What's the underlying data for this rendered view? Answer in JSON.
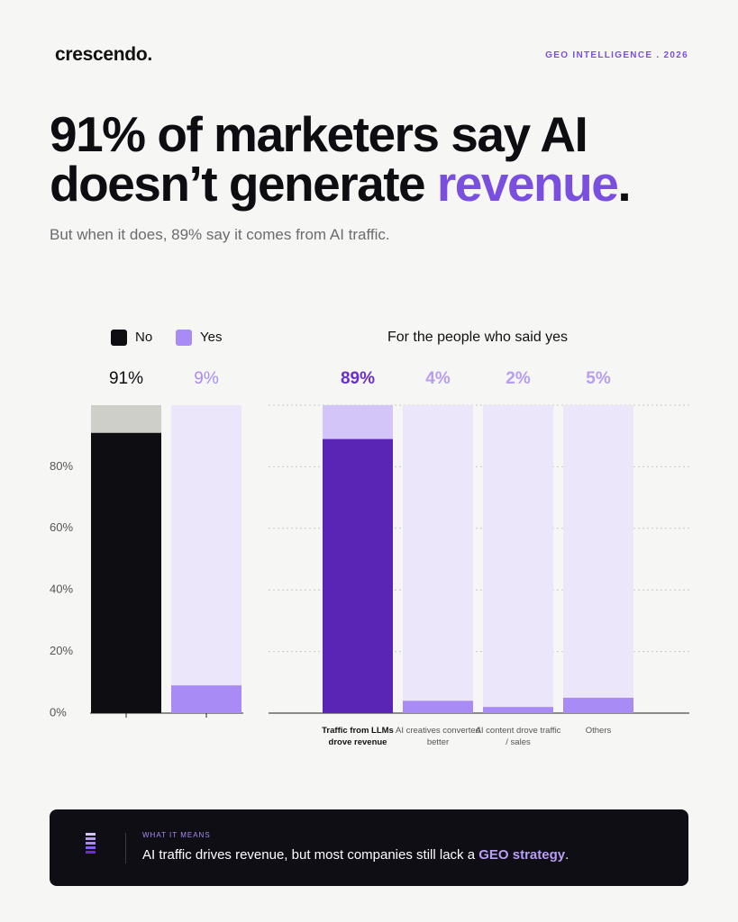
{
  "header": {
    "brand": "crescendo.",
    "tag": "GEO INTELLIGENCE . 2026"
  },
  "headline": {
    "text": "91% of marketers say AI doesn’t generate ",
    "highlight": "revenue",
    "end": "."
  },
  "subtitle": "But when it does, 89% say it comes from AI traffic.",
  "chart_data": [
    {
      "type": "bar",
      "track": true,
      "series": [
        {
          "name": "No",
          "color": "#0e0d12",
          "track_color": "#cfcfc9",
          "values": [
            91
          ],
          "value_labels": [
            "91%"
          ]
        },
        {
          "name": "Yes",
          "color": "#a98bf5",
          "track_color": "#ece6fb",
          "values": [
            9
          ],
          "value_labels": [
            "9%"
          ]
        }
      ],
      "ylim": [
        0,
        100
      ],
      "yticks": [
        {
          "value": 0,
          "label": "0%"
        },
        {
          "value": 20,
          "label": "20%"
        },
        {
          "value": 40,
          "label": "40%"
        },
        {
          "value": 60,
          "label": "60%"
        },
        {
          "value": 80,
          "label": "80%"
        }
      ]
    },
    {
      "type": "bar",
      "title": "For the people who said yes",
      "grid": true,
      "categories": [
        "Traffic from LLMs drove revenue",
        "AI creatives converted better",
        "AI content drove traffic / sales",
        "Others"
      ],
      "values": [
        89,
        4,
        2,
        5
      ],
      "value_labels": [
        "89%",
        "4%",
        "2%",
        "5%"
      ],
      "colors": [
        "#5a24b4",
        "#a98bf5",
        "#a98bf5",
        "#a98bf5"
      ],
      "track_colors": [
        "#d4c5f9",
        "#ece6fb",
        "#ece6fb",
        "#ece6fb"
      ],
      "label_colors": [
        "#6a2ed0",
        "#b79df5",
        "#b79df5",
        "#b79df5"
      ],
      "ylim": [
        0,
        100
      ]
    }
  ],
  "footer": {
    "label": "WHAT IT MEANS",
    "text": "AI traffic drives revenue, but most companies still lack a ",
    "highlight": "GEO strategy",
    "end": "."
  }
}
